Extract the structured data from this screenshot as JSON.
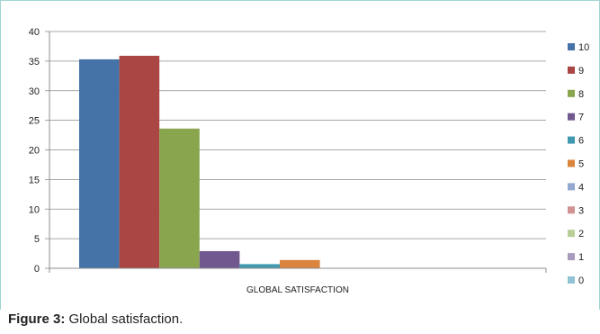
{
  "chart_data": {
    "type": "bar",
    "categories": [
      "GLOBAL SATISFACTION"
    ],
    "series": [
      {
        "name": "10",
        "color": "#4572a7",
        "values": [
          35.3
        ]
      },
      {
        "name": "9",
        "color": "#aa4643",
        "values": [
          35.9
        ]
      },
      {
        "name": "8",
        "color": "#89a54e",
        "values": [
          23.6
        ]
      },
      {
        "name": "7",
        "color": "#71588f",
        "values": [
          2.9
        ]
      },
      {
        "name": "6",
        "color": "#4198af",
        "values": [
          0.7
        ]
      },
      {
        "name": "5",
        "color": "#db843d",
        "values": [
          1.4
        ]
      },
      {
        "name": "4",
        "color": "#93a9cf",
        "values": [
          0
        ]
      },
      {
        "name": "3",
        "color": "#d19392",
        "values": [
          0
        ]
      },
      {
        "name": "2",
        "color": "#b9cd96",
        "values": [
          0
        ]
      },
      {
        "name": "1",
        "color": "#a99bbd",
        "values": [
          0
        ]
      },
      {
        "name": "0",
        "color": "#91c3d5",
        "values": [
          0
        ]
      }
    ],
    "ylim": [
      0,
      40
    ],
    "yticks": [
      0,
      5,
      10,
      15,
      20,
      25,
      30,
      35,
      40
    ],
    "grid": true,
    "legend": "right"
  },
  "caption": {
    "label": "Figure 3:",
    "text": " Global satisfaction."
  }
}
